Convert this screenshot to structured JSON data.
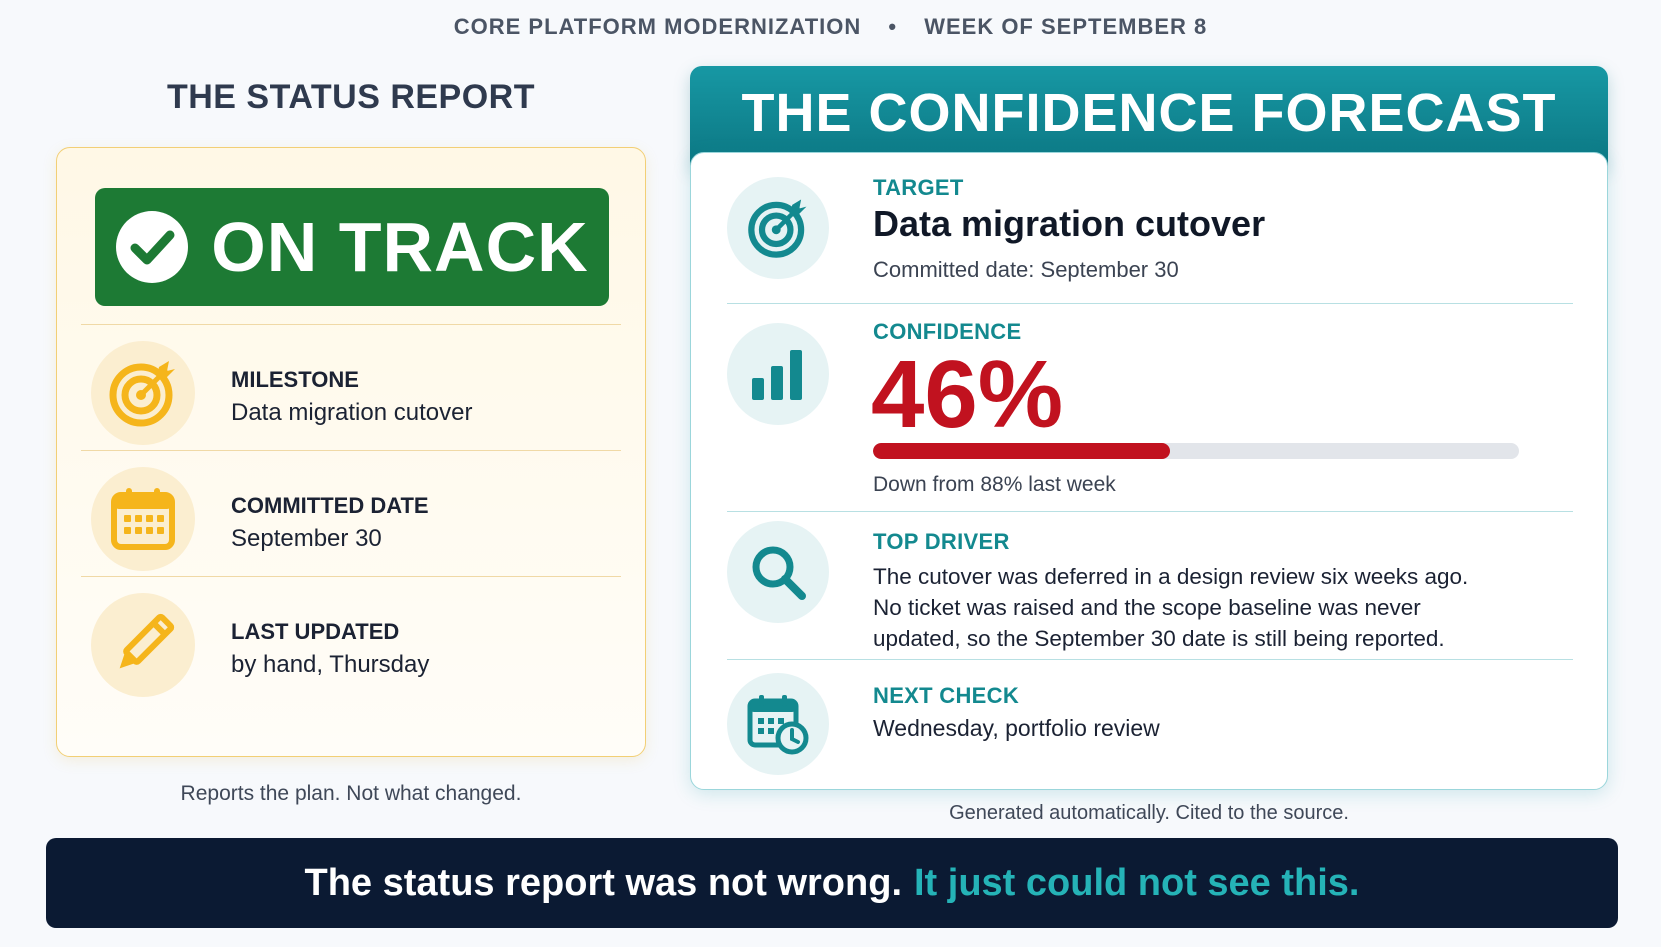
{
  "header": {
    "project": "CORE PLATFORM MODERNIZATION",
    "separator": "•",
    "week": "WEEK OF SEPTEMBER 8"
  },
  "status_report": {
    "title": "THE STATUS REPORT",
    "status_label": "ON TRACK",
    "status_color": "#1d7a34",
    "accent_color": "#f5b51b",
    "rows": [
      {
        "icon": "target-icon",
        "label": "MILESTONE",
        "value": "Data migration cutover"
      },
      {
        "icon": "calendar-icon",
        "label": "COMMITTED DATE",
        "value": "September 30"
      },
      {
        "icon": "pencil-icon",
        "label": "LAST UPDATED",
        "value": "by hand, Thursday"
      }
    ],
    "caption": "Reports the plan. Not what changed."
  },
  "forecast": {
    "title": "THE CONFIDENCE FORECAST",
    "accent_color": "#13898f",
    "target": {
      "icon": "target-icon",
      "label": "TARGET",
      "title": "Data migration cutover",
      "sub": "Committed date: September 30"
    },
    "confidence": {
      "icon": "bar-chart-icon",
      "label": "CONFIDENCE",
      "value_text": "46%",
      "value": 46,
      "bar_color": "#c1121f",
      "note": "Down from 88% last week"
    },
    "driver": {
      "icon": "magnifier-icon",
      "label": "TOP DRIVER",
      "lines": [
        "The cutover was deferred in a design review six weeks ago.",
        "No ticket was raised and the scope baseline was never",
        "updated, so the September 30 date is still being reported."
      ]
    },
    "next_check": {
      "icon": "calendar-clock-icon",
      "label": "NEXT CHECK",
      "value": "Wednesday, portfolio review"
    },
    "caption": "Generated automatically. Cited to the source."
  },
  "footer": {
    "part1": "The status report was not wrong.",
    "part2": "It just could not see this."
  }
}
